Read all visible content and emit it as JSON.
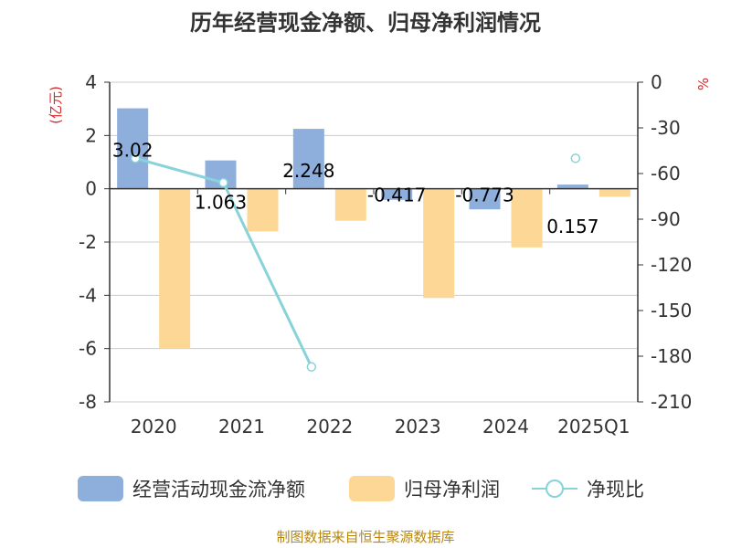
{
  "chart_data": {
    "type": "bar",
    "title": "历年经营现金净额、归母净利润情况",
    "categories": [
      "2020",
      "2021",
      "2022",
      "2023",
      "2024",
      "2025Q1"
    ],
    "y_left": {
      "label": "(亿元)",
      "min": -8,
      "max": 4,
      "ticks": [
        "4",
        "2",
        "0",
        "-2",
        "-4",
        "-6",
        "-8"
      ]
    },
    "y_right": {
      "label": "%",
      "min": -210,
      "max": 0,
      "ticks": [
        "0",
        "-30",
        "-60",
        "-90",
        "-120",
        "-150",
        "-180",
        "-210"
      ]
    },
    "series": [
      {
        "name": "经营活动现金流净额",
        "type": "bar",
        "axis": "left",
        "color": "#8eaedc",
        "values": [
          3.02,
          1.063,
          2.248,
          -0.417,
          -0.773,
          0.157
        ],
        "labels": [
          "3.02",
          "1.063",
          "2.248",
          "-0.417",
          "-0.773",
          "0.157"
        ]
      },
      {
        "name": "归母净利润",
        "type": "bar",
        "axis": "left",
        "color": "#fdd795",
        "values": [
          -6.0,
          -1.6,
          -1.2,
          -4.1,
          -2.2,
          -0.3
        ]
      },
      {
        "name": "净现比",
        "type": "line",
        "axis": "right",
        "color": "#87d3d9",
        "values": [
          -50,
          -66,
          -187,
          null,
          null,
          -50
        ]
      }
    ],
    "source": "制图数据来自恒生聚源数据库"
  }
}
